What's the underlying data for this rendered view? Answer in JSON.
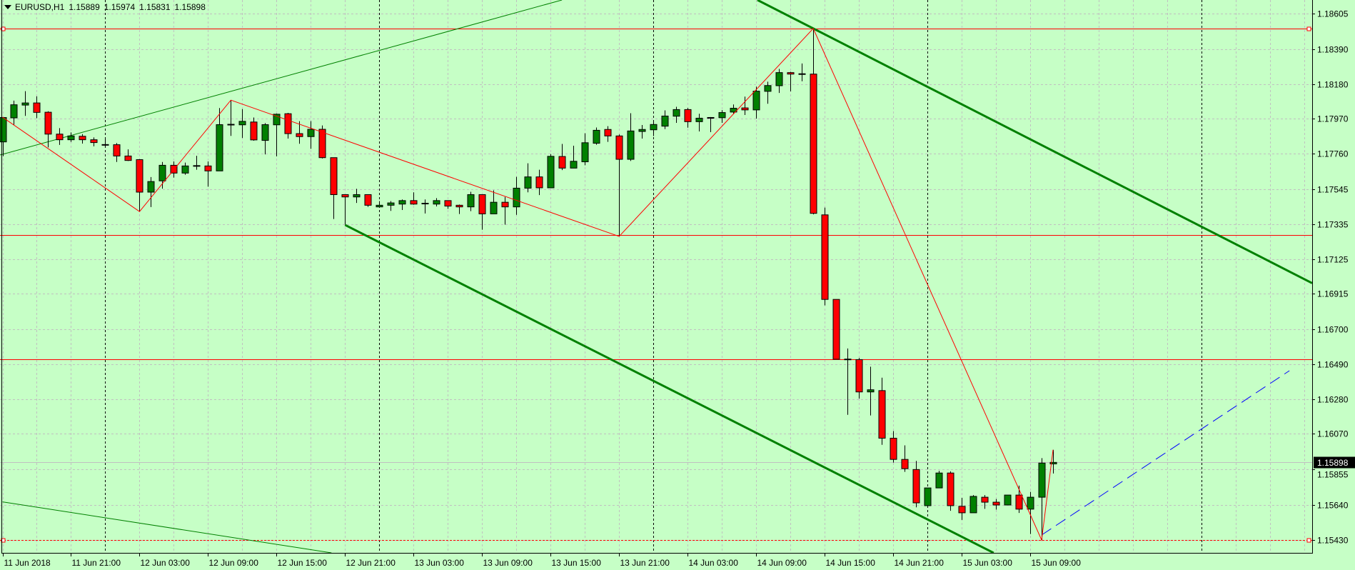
{
  "header": {
    "symbol": "EURUSD,H1",
    "open": "1.15889",
    "high": "1.15974",
    "low": "1.15831",
    "close": "1.15898",
    "menu_icon": "triangle-down-icon"
  },
  "colors": {
    "background": "#c6ffc6",
    "grid": "#c0c0c0",
    "bull": "#008000",
    "bear": "#ff0000",
    "outline": "#000000",
    "zigzag": "#ff0000",
    "hline": "#ff0000",
    "trend": "#008000",
    "projection": "#0000ff",
    "bid_line": "#c0c0c0",
    "price_label_bg": "#000000",
    "price_label_fg": "#ffffff"
  },
  "chart_data": {
    "type": "candlestick",
    "title": "EURUSD,H1",
    "timeframe": "H1",
    "grid": true,
    "ylim": [
      1.154,
      1.1868
    ],
    "y_ticks": [
      "1.18605",
      "1.18390",
      "1.18180",
      "1.17970",
      "1.17760",
      "1.17545",
      "1.17335",
      "1.17125",
      "1.16915",
      "1.16700",
      "1.16490",
      "1.16280",
      "1.16070",
      "1.15855",
      "1.15640",
      "1.15430"
    ],
    "x_ticks": [
      {
        "bar": 0,
        "label": "11 Jun 2018"
      },
      {
        "bar": 6,
        "label": "11 Jun 21:00"
      },
      {
        "bar": 12,
        "label": "12 Jun 03:00"
      },
      {
        "bar": 18,
        "label": "12 Jun 09:00"
      },
      {
        "bar": 24,
        "label": "12 Jun 15:00"
      },
      {
        "bar": 30,
        "label": "12 Jun 21:00"
      },
      {
        "bar": 36,
        "label": "13 Jun 03:00"
      },
      {
        "bar": 42,
        "label": "13 Jun 09:00"
      },
      {
        "bar": 48,
        "label": "13 Jun 15:00"
      },
      {
        "bar": 54,
        "label": "13 Jun 21:00"
      },
      {
        "bar": 60,
        "label": "14 Jun 03:00"
      },
      {
        "bar": 66,
        "label": "14 Jun 09:00"
      },
      {
        "bar": 72,
        "label": "14 Jun 15:00"
      },
      {
        "bar": 78,
        "label": "14 Jun 21:00"
      },
      {
        "bar": 84,
        "label": "15 Jun 03:00"
      },
      {
        "bar": 90,
        "label": "15 Jun 09:00"
      }
    ],
    "day_separators": [
      "12 Jun 00:00",
      "13 Jun 00:00",
      "14 Jun 00:00",
      "15 Jun 00:00",
      "16 Jun 00:00"
    ],
    "candles_columns": [
      "time",
      "open",
      "high",
      "low",
      "close"
    ],
    "candles": [
      [
        "11 Jun 15:00",
        1.17831,
        1.1798,
        1.17745,
        1.17978
      ],
      [
        "11 Jun 16:00",
        1.17976,
        1.1808,
        1.17933,
        1.18055
      ],
      [
        "11 Jun 17:00",
        1.18053,
        1.18137,
        1.17988,
        1.18066
      ],
      [
        "11 Jun 18:00",
        1.18066,
        1.18106,
        1.17974,
        1.18009
      ],
      [
        "11 Jun 19:00",
        1.1801,
        1.18016,
        1.17798,
        1.17878
      ],
      [
        "11 Jun 20:00",
        1.17878,
        1.17914,
        1.17813,
        1.17844
      ],
      [
        "11 Jun 21:00",
        1.17844,
        1.17888,
        1.17831,
        1.17867
      ],
      [
        "11 Jun 22:00",
        1.17865,
        1.17878,
        1.17821,
        1.17844
      ],
      [
        "11 Jun 23:00",
        1.17844,
        1.17858,
        1.17804,
        1.17827
      ],
      [
        "12 Jun 00:00",
        1.17813,
        1.17848,
        1.17807,
        1.17813
      ],
      [
        "12 Jun 01:00",
        1.17814,
        1.17824,
        1.1771,
        1.17746
      ],
      [
        "12 Jun 02:00",
        1.17746,
        1.17786,
        1.17716,
        1.17719
      ],
      [
        "12 Jun 03:00",
        1.17724,
        1.17727,
        1.17411,
        1.17528
      ],
      [
        "12 Jun 04:00",
        1.17528,
        1.17619,
        1.17438,
        1.17592
      ],
      [
        "12 Jun 05:00",
        1.17596,
        1.1771,
        1.17549,
        1.1769
      ],
      [
        "12 Jun 06:00",
        1.1769,
        1.17713,
        1.17616,
        1.17643
      ],
      [
        "12 Jun 07:00",
        1.17643,
        1.17706,
        1.17633,
        1.17686
      ],
      [
        "12 Jun 08:00",
        1.17686,
        1.17747,
        1.17663,
        1.17686
      ],
      [
        "12 Jun 09:00",
        1.17686,
        1.17713,
        1.17561,
        1.17656
      ],
      [
        "12 Jun 10:00",
        1.17656,
        1.18035,
        1.17656,
        1.17935
      ],
      [
        "12 Jun 11:00",
        1.17935,
        1.18083,
        1.17867,
        1.17935
      ],
      [
        "12 Jun 12:00",
        1.17934,
        1.18029,
        1.17855,
        1.17955
      ],
      [
        "12 Jun 13:00",
        1.17951,
        1.17978,
        1.17838,
        1.17843
      ],
      [
        "12 Jun 14:00",
        1.1784,
        1.17944,
        1.17756,
        1.17935
      ],
      [
        "12 Jun 15:00",
        1.17934,
        1.18002,
        1.17744,
        1.17998
      ],
      [
        "12 Jun 16:00",
        1.18001,
        1.18006,
        1.17851,
        1.17881
      ],
      [
        "12 Jun 17:00",
        1.17881,
        1.17956,
        1.1782,
        1.17863
      ],
      [
        "12 Jun 18:00",
        1.17863,
        1.17956,
        1.17789,
        1.17907
      ],
      [
        "12 Jun 19:00",
        1.17907,
        1.1793,
        1.17731,
        1.17736
      ],
      [
        "12 Jun 20:00",
        1.17736,
        1.17736,
        1.17366,
        1.17513
      ],
      [
        "12 Jun 21:00",
        1.17513,
        1.17513,
        1.17333,
        1.17499
      ],
      [
        "12 Jun 22:00",
        1.17499,
        1.17548,
        1.17463,
        1.17513
      ],
      [
        "12 Jun 23:00",
        1.17513,
        1.17513,
        1.17439,
        1.17449
      ],
      [
        "13 Jun 00:00",
        1.17439,
        1.17474,
        1.17439,
        1.17449
      ],
      [
        "13 Jun 01:00",
        1.17449,
        1.17474,
        1.17415,
        1.17463
      ],
      [
        "13 Jun 02:00",
        1.17456,
        1.17484,
        1.1742,
        1.17477
      ],
      [
        "13 Jun 03:00",
        1.17477,
        1.17527,
        1.17452,
        1.17456
      ],
      [
        "13 Jun 04:00",
        1.17459,
        1.17484,
        1.17399,
        1.17459
      ],
      [
        "13 Jun 05:00",
        1.17456,
        1.17492,
        1.17442,
        1.17477
      ],
      [
        "13 Jun 06:00",
        1.17477,
        1.17477,
        1.17427,
        1.17444
      ],
      [
        "13 Jun 07:00",
        1.17449,
        1.17453,
        1.17396,
        1.17439
      ],
      [
        "13 Jun 08:00",
        1.17439,
        1.1753,
        1.17413,
        1.17513
      ],
      [
        "13 Jun 09:00",
        1.17513,
        1.17513,
        1.17301,
        1.17397
      ],
      [
        "13 Jun 10:00",
        1.17397,
        1.17539,
        1.17397,
        1.17467
      ],
      [
        "13 Jun 11:00",
        1.17467,
        1.17499,
        1.17332,
        1.17439
      ],
      [
        "13 Jun 12:00",
        1.17439,
        1.1762,
        1.17391,
        1.17552
      ],
      [
        "13 Jun 13:00",
        1.17552,
        1.17702,
        1.17527,
        1.1762
      ],
      [
        "13 Jun 14:00",
        1.1762,
        1.17663,
        1.1751,
        1.17554
      ],
      [
        "13 Jun 15:00",
        1.17554,
        1.17758,
        1.17554,
        1.17744
      ],
      [
        "13 Jun 16:00",
        1.17743,
        1.17819,
        1.17661,
        1.17673
      ],
      [
        "13 Jun 17:00",
        1.17673,
        1.17808,
        1.17673,
        1.17714
      ],
      [
        "13 Jun 18:00",
        1.17711,
        1.17883,
        1.1769,
        1.17826
      ],
      [
        "13 Jun 19:00",
        1.17823,
        1.17918,
        1.17814,
        1.17901
      ],
      [
        "13 Jun 20:00",
        1.17906,
        1.17926,
        1.17831,
        1.17867
      ],
      [
        "13 Jun 21:00",
        1.17867,
        1.17876,
        1.17261,
        1.17726
      ],
      [
        "13 Jun 22:00",
        1.17726,
        1.18004,
        1.17716,
        1.17897
      ],
      [
        "13 Jun 23:00",
        1.17894,
        1.17933,
        1.17851,
        1.17906
      ],
      [
        "14 Jun 00:00",
        1.17904,
        1.17954,
        1.17866,
        1.17936
      ],
      [
        "14 Jun 01:00",
        1.17926,
        1.18021,
        1.17908,
        1.17987
      ],
      [
        "14 Jun 02:00",
        1.17986,
        1.18043,
        1.17946,
        1.18026
      ],
      [
        "14 Jun 03:00",
        1.18026,
        1.18036,
        1.17917,
        1.17953
      ],
      [
        "14 Jun 04:00",
        1.17953,
        1.18001,
        1.17894,
        1.17974
      ],
      [
        "14 Jun 05:00",
        1.17974,
        1.17981,
        1.1789,
        1.17976
      ],
      [
        "14 Jun 06:00",
        1.17977,
        1.18023,
        1.17946,
        1.18008
      ],
      [
        "14 Jun 07:00",
        1.18011,
        1.18057,
        1.17999,
        1.18034
      ],
      [
        "14 Jun 08:00",
        1.18036,
        1.18104,
        1.17993,
        1.18024
      ],
      [
        "14 Jun 09:00",
        1.18024,
        1.18164,
        1.17971,
        1.18137
      ],
      [
        "14 Jun 10:00",
        1.18136,
        1.18194,
        1.18061,
        1.18171
      ],
      [
        "14 Jun 11:00",
        1.1817,
        1.18271,
        1.18126,
        1.18249
      ],
      [
        "14 Jun 12:00",
        1.18249,
        1.18254,
        1.18136,
        1.1824
      ],
      [
        "14 Jun 13:00",
        1.1824,
        1.18304,
        1.18197,
        1.1824
      ],
      [
        "14 Jun 14:00",
        1.1824,
        1.18515,
        1.17394,
        1.174
      ],
      [
        "14 Jun 15:00",
        1.17391,
        1.17435,
        1.16845,
        1.16881
      ],
      [
        "14 Jun 16:00",
        1.16881,
        1.16881,
        1.1652,
        1.1652
      ],
      [
        "14 Jun 17:00",
        1.16519,
        1.16585,
        1.16185,
        1.16519
      ],
      [
        "14 Jun 18:00",
        1.16518,
        1.16528,
        1.16283,
        1.16323
      ],
      [
        "14 Jun 19:00",
        1.16323,
        1.16475,
        1.16181,
        1.16336
      ],
      [
        "14 Jun 20:00",
        1.16331,
        1.16409,
        1.16004,
        1.16044
      ],
      [
        "14 Jun 21:00",
        1.16044,
        1.16087,
        1.15897,
        1.15916
      ],
      [
        "14 Jun 22:00",
        1.15916,
        1.16001,
        1.15841,
        1.1586
      ],
      [
        "14 Jun 23:00",
        1.15855,
        1.15907,
        1.15627,
        1.15654
      ],
      [
        "15 Jun 00:00",
        1.15637,
        1.15744,
        1.15637,
        1.15744
      ],
      [
        "15 Jun 01:00",
        1.15744,
        1.15847,
        1.15744,
        1.15834
      ],
      [
        "15 Jun 02:00",
        1.15834,
        1.15844,
        1.15606,
        1.15637
      ],
      [
        "15 Jun 03:00",
        1.15633,
        1.15684,
        1.15551,
        1.15594
      ],
      [
        "15 Jun 04:00",
        1.15594,
        1.15701,
        1.15594,
        1.15693
      ],
      [
        "15 Jun 05:00",
        1.15688,
        1.15701,
        1.15618,
        1.15658
      ],
      [
        "15 Jun 06:00",
        1.15658,
        1.15677,
        1.15613,
        1.15641
      ],
      [
        "15 Jun 07:00",
        1.15641,
        1.15701,
        1.15641,
        1.15701
      ],
      [
        "15 Jun 08:00",
        1.15701,
        1.15758,
        1.15593,
        1.15616
      ],
      [
        "15 Jun 09:00",
        1.15616,
        1.1572,
        1.15466,
        1.15688
      ],
      [
        "15 Jun 10:00",
        1.15688,
        1.15924,
        1.1543,
        1.15894
      ],
      [
        "15 Jun 11:00",
        1.15889,
        1.15974,
        1.15831,
        1.15898
      ]
    ],
    "current_price": "1.15898",
    "zigzag": [
      [
        0,
        1.1798
      ],
      [
        12,
        1.17411
      ],
      [
        20,
        1.18083
      ],
      [
        54,
        1.17261
      ],
      [
        71,
        1.18515
      ],
      [
        91,
        1.1543
      ],
      [
        92,
        1.15974
      ]
    ],
    "horizontal_lines": [
      {
        "price": 1.18515,
        "style": "solid",
        "anchors": true
      },
      {
        "price": 1.17268,
        "style": "solid",
        "anchors": false
      },
      {
        "price": 1.16519,
        "style": "solid",
        "anchors": false
      },
      {
        "price": 1.1543,
        "style": "dotted",
        "anchors": true
      }
    ],
    "trendlines": [
      {
        "id": "upper-thin",
        "p1": [
          0,
          1.17756
        ],
        "p2": [
          24,
          1.18212
        ],
        "extend": "both",
        "width": "thin",
        "color": "#008000"
      },
      {
        "id": "lower-thin",
        "p1": [
          0,
          1.1566
        ],
        "p2": [
          28,
          1.15361
        ],
        "extend": "right",
        "width": "thin",
        "color": "#008000"
      },
      {
        "id": "channel-upper",
        "p1": [
          71,
          1.18515
        ],
        "p2": [
          90,
          1.17847
        ],
        "extend": "both",
        "width": "thick",
        "color": "#008000"
      },
      {
        "id": "channel-lower",
        "p1": [
          30,
          1.1733
        ],
        "p2": [
          80,
          1.15589
        ],
        "extend": "right",
        "width": "thick",
        "color": "#008000"
      },
      {
        "id": "projection",
        "p1": [
          91,
          1.1546
        ],
        "p2": [
          112.7,
          1.16451
        ],
        "extend": "none",
        "width": "dashed",
        "color": "#0000ff"
      }
    ]
  }
}
